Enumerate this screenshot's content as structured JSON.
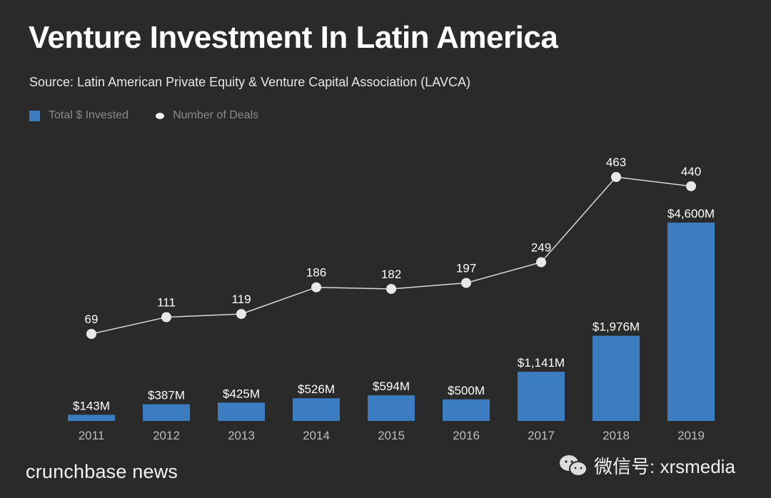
{
  "chart_data": {
    "type": "bar+line",
    "title": "Venture Investment In Latin America",
    "subtitle": "Source: Latin American Private Equity & Venture Capital Association (LAVCA)",
    "categories": [
      "2011",
      "2012",
      "2013",
      "2014",
      "2015",
      "2016",
      "2017",
      "2018",
      "2019"
    ],
    "series": [
      {
        "name": "Total $ Invested",
        "type": "bar",
        "unit": "$M",
        "color": "#3b7dc0",
        "values": [
          143,
          387,
          425,
          526,
          594,
          500,
          1141,
          1976,
          4600
        ],
        "labels": [
          "$143M",
          "$387M",
          "$425M",
          "$526M",
          "$594M",
          "$500M",
          "$1,141M",
          "$1,976M",
          "$4,600M"
        ]
      },
      {
        "name": "Number of Deals",
        "type": "line",
        "color": "#e8e8e8",
        "values": [
          69,
          111,
          119,
          186,
          182,
          197,
          249,
          463,
          440
        ]
      }
    ],
    "legend_position": "top-left",
    "grid": false
  },
  "footer": {
    "brand": "crunchbase news",
    "watermark": "微信号: xrsmedia"
  }
}
